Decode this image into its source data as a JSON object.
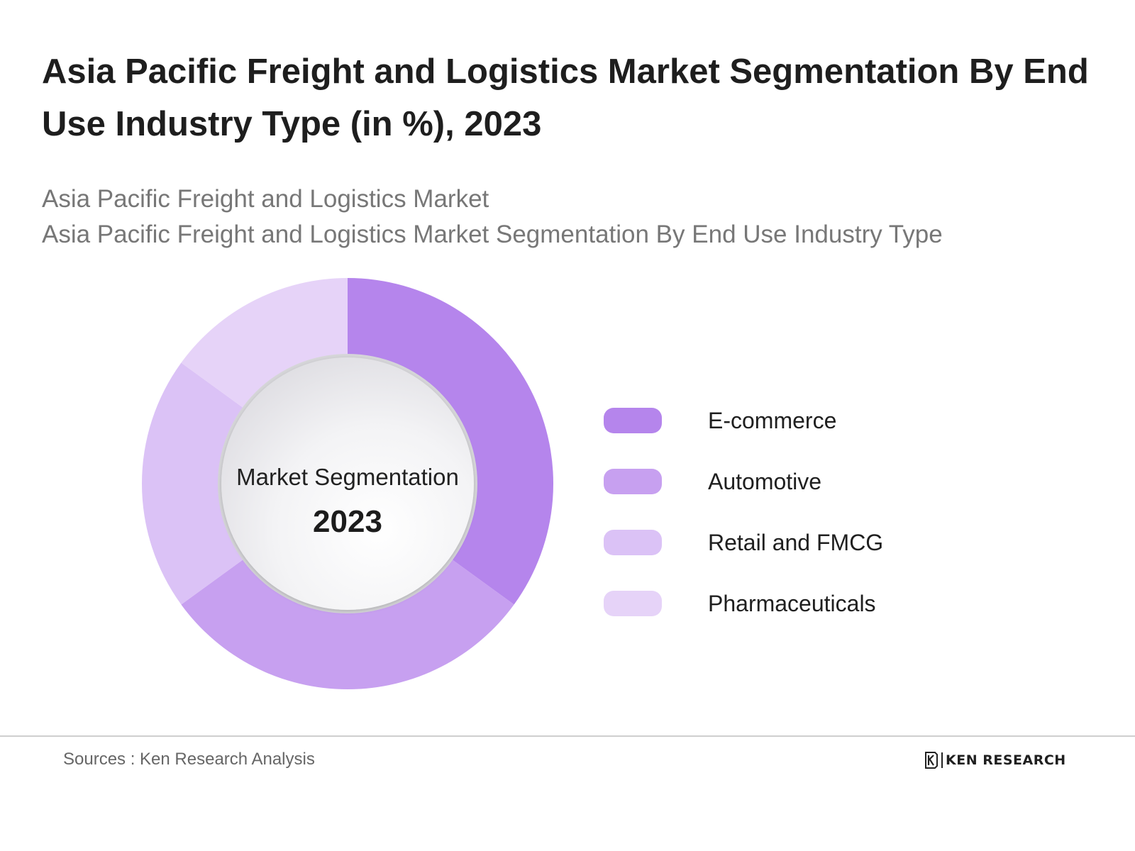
{
  "title": "Asia Pacific Freight and Logistics Market Segmentation By End Use Industry Type (in %), 2023",
  "subtitle_lines": [
    "Asia Pacific Freight and Logistics Market",
    "Asia Pacific Freight and Logistics Market Segmentation By End Use Industry Type"
  ],
  "center": {
    "label": "Market Segmentation",
    "year": "2023"
  },
  "chart_data": {
    "type": "pie",
    "variant": "donut",
    "categories": [
      "E-commerce",
      "Automotive",
      "Retail and FMCG",
      "Pharmaceuticals"
    ],
    "values": [
      35,
      30,
      20,
      15
    ],
    "colors": [
      "#b585ec",
      "#c7a0f0",
      "#dbc2f6",
      "#e6d3f8"
    ],
    "legend_position": "right"
  },
  "footer": {
    "source": "Sources : Ken Research Analysis",
    "brand": "KEN RESEARCH"
  }
}
